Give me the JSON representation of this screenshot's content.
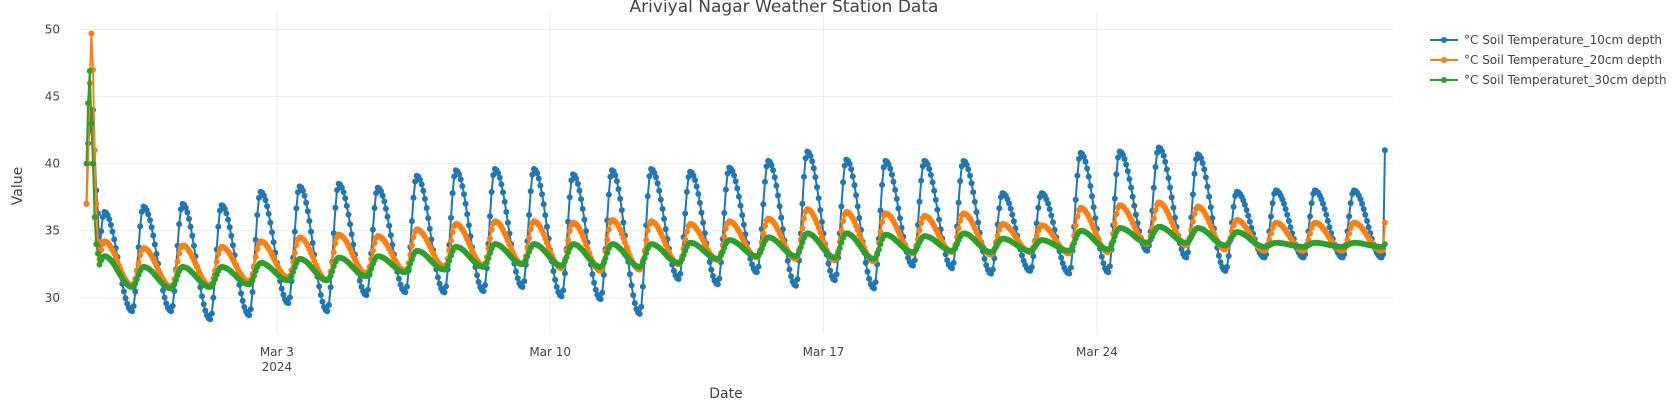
{
  "chart_data": {
    "type": "line",
    "title": "Ariviyal Nagar Weather Station Data",
    "xlabel": "Date",
    "ylabel": "Value",
    "x_range": [
      "2024-02-26T23:00",
      "2024-03-31T14:00"
    ],
    "ylim": [
      27.3,
      51.3
    ],
    "y_ticks": [
      30,
      35,
      40,
      45,
      50
    ],
    "x_ticks": [
      {
        "date": "2024-03-03",
        "label": "Mar 3",
        "sublabel": "2024"
      },
      {
        "date": "2024-03-10",
        "label": "Mar 10",
        "sublabel": ""
      },
      {
        "date": "2024-03-17",
        "label": "Mar 17",
        "sublabel": ""
      },
      {
        "date": "2024-03-24",
        "label": "Mar 24",
        "sublabel": ""
      }
    ],
    "grid": true,
    "legend_position": "top-right",
    "series": [
      {
        "name": "°C Soil Temperature_10cm depth",
        "color": "#1f77b4",
        "mode": "lines+markers",
        "start": "2024-02-27T03:00",
        "interval_hours": 1,
        "spike": [
          37.0,
          41.5,
          42.5,
          43.5,
          44.0,
          41.0,
          38.0,
          36.3
        ],
        "daily_max": [
          36.4,
          36.8,
          37.0,
          36.9,
          37.9,
          38.3,
          38.5,
          38.2,
          39.1,
          39.5,
          39.6,
          39.6,
          39.2,
          39.5,
          39.6,
          39.4,
          39.7,
          40.2,
          40.9,
          40.3,
          40.2,
          40.2,
          40.2,
          37.8,
          37.8,
          40.8,
          40.9,
          41.2,
          40.7,
          37.9,
          38.0
        ],
        "daily_min": [
          28.8,
          29.0,
          29.0,
          28.4,
          28.7,
          29.6,
          29.0,
          30.2,
          30.4,
          30.4,
          30.5,
          30.8,
          30.1,
          29.9,
          28.8,
          31.4,
          31.0,
          31.9,
          30.9,
          31.3,
          30.7,
          32.4,
          32.2,
          31.8,
          32.0,
          31.8,
          31.9,
          33.5,
          33.0,
          32.0,
          33.0
        ],
        "final_value": 41.0
      },
      {
        "name": "°C Soil Temperature_20cm depth",
        "color": "#ff7f0e",
        "mode": "lines+markers",
        "start": "2024-02-27T03:00",
        "interval_hours": 1,
        "spike": [
          37.0,
          40.0,
          46.0,
          49.7,
          47.0,
          41.0,
          37.0,
          34.2
        ],
        "daily_max": [
          34.2,
          33.7,
          33.9,
          33.8,
          34.2,
          34.5,
          34.7,
          34.6,
          35.1,
          35.5,
          35.7,
          35.7,
          35.6,
          35.8,
          35.7,
          35.5,
          35.7,
          35.9,
          36.6,
          36.4,
          36.3,
          36.1,
          36.3,
          35.5,
          35.4,
          36.7,
          36.9,
          37.1,
          36.8,
          35.8,
          35.6
        ],
        "daily_min": [
          30.8,
          30.9,
          30.8,
          30.9,
          31.2,
          31.5,
          31.3,
          31.8,
          32.0,
          32.3,
          32.4,
          32.5,
          32.2,
          32.0,
          32.1,
          32.5,
          32.8,
          33.0,
          32.9,
          32.8,
          32.7,
          33.3,
          33.4,
          33.2,
          33.4,
          33.3,
          33.4,
          34.0,
          33.9,
          33.6,
          33.5
        ],
        "final_value": 35.6
      },
      {
        "name": "°C Soil Temperaturet_30cm depth",
        "color": "#2ca02c",
        "mode": "lines+markers",
        "start": "2024-02-27T03:00",
        "interval_hours": 1,
        "spike": [
          40.0,
          44.5,
          46.9,
          43.0,
          40.0,
          36.0,
          34.0,
          33.3
        ],
        "daily_max": [
          33.1,
          32.3,
          32.3,
          32.3,
          32.6,
          32.9,
          33.0,
          33.1,
          33.5,
          33.8,
          34.0,
          34.0,
          34.0,
          34.0,
          34.0,
          34.1,
          34.3,
          34.5,
          34.8,
          34.8,
          34.7,
          34.6,
          34.8,
          34.4,
          34.3,
          35.0,
          35.2,
          35.3,
          35.2,
          34.9,
          34.1
        ],
        "daily_min": [
          31.5,
          30.8,
          30.7,
          30.8,
          31.0,
          31.3,
          31.3,
          31.6,
          31.9,
          32.1,
          32.3,
          32.5,
          32.4,
          32.3,
          32.3,
          32.6,
          32.9,
          33.1,
          33.1,
          33.0,
          32.9,
          33.4,
          33.5,
          33.4,
          33.5,
          33.5,
          33.6,
          34.1,
          34.1,
          33.9,
          33.8
        ],
        "final_value": 34.0
      }
    ]
  }
}
